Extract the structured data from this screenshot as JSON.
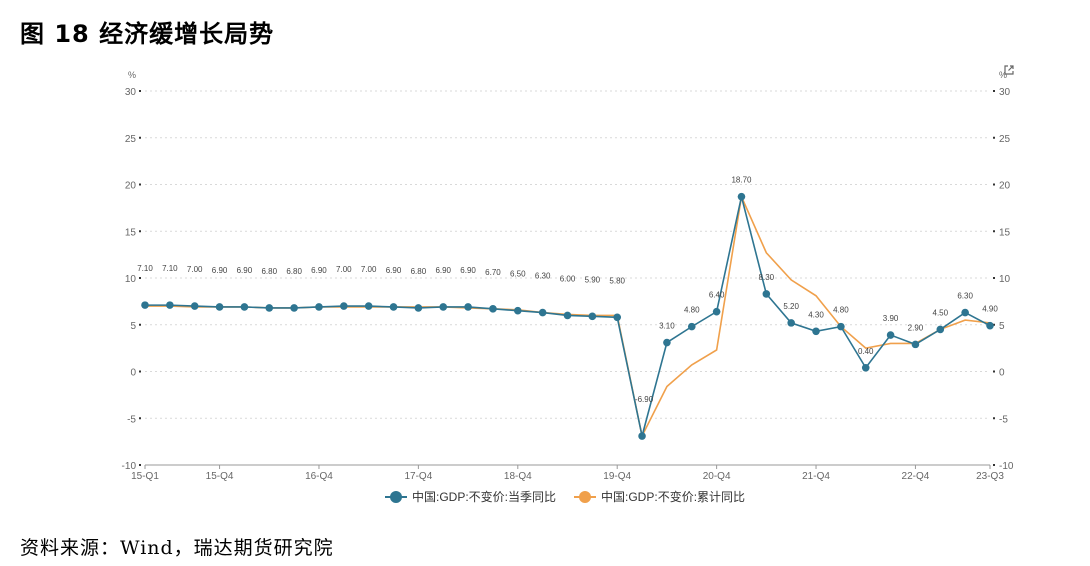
{
  "figure": {
    "title": "图 18 经济缓增长局势",
    "source": "资料来源：Wind，瑞达期货研究院"
  },
  "chart_data": {
    "type": "line",
    "y_unit_left": "%",
    "y_unit_right": "%",
    "ylim": [
      -10,
      30
    ],
    "yticks": [
      -10,
      -5,
      0,
      5,
      10,
      15,
      20,
      25,
      30
    ],
    "grid": true,
    "legend_position": "bottom-center",
    "categories": [
      "15-Q1",
      "15-Q2",
      "15-Q3",
      "15-Q4",
      "16-Q1",
      "16-Q2",
      "16-Q3",
      "16-Q4",
      "17-Q1",
      "17-Q2",
      "17-Q3",
      "17-Q4",
      "18-Q1",
      "18-Q2",
      "18-Q3",
      "18-Q4",
      "19-Q1",
      "19-Q2",
      "19-Q3",
      "19-Q4",
      "20-Q1",
      "20-Q2",
      "20-Q3",
      "20-Q4",
      "21-Q1",
      "21-Q2",
      "21-Q3",
      "21-Q4",
      "22-Q1",
      "22-Q2",
      "22-Q3",
      "22-Q4",
      "23-Q1",
      "23-Q2",
      "23-Q3"
    ],
    "xtick_labels": [
      "15-Q1",
      "15-Q4",
      "16-Q4",
      "17-Q4",
      "18-Q4",
      "19-Q4",
      "20-Q4",
      "21-Q4",
      "22-Q4",
      "23-Q3"
    ],
    "series": [
      {
        "name": "中国:GDP:不变价:当季同比",
        "color": "#2e7591",
        "values": [
          7.1,
          7.1,
          7.0,
          6.9,
          6.9,
          6.8,
          6.8,
          6.9,
          7.0,
          7.0,
          6.9,
          6.8,
          6.9,
          6.9,
          6.7,
          6.5,
          6.3,
          6.0,
          5.9,
          5.8,
          -6.9,
          3.1,
          4.8,
          6.4,
          18.7,
          8.3,
          5.2,
          4.3,
          4.8,
          0.4,
          3.9,
          2.9,
          4.5,
          6.3,
          4.9
        ],
        "data_labels": [
          "7.10",
          "7.10",
          "7.00",
          "6.90",
          "6.90",
          "6.80",
          "6.80",
          "6.90",
          "7.00",
          "7.00",
          "6.90",
          "6.80",
          "6.90",
          "6.90",
          "6.70",
          "6.50",
          "6.30",
          "6.00",
          "5.90",
          "5.80",
          "-6.90",
          "3.10",
          "4.80",
          "6.40",
          "18.70",
          "8.30",
          "5.20",
          "4.30",
          "4.80",
          "0.40",
          "3.90",
          "2.90",
          "4.50",
          "6.30",
          "4.90"
        ]
      },
      {
        "name": "中国:GDP:不变价:累计同比",
        "color": "#f0a04b",
        "values": [
          7.0,
          7.0,
          6.9,
          6.9,
          6.9,
          6.8,
          6.8,
          6.9,
          6.9,
          6.9,
          6.9,
          6.9,
          6.9,
          6.8,
          6.7,
          6.6,
          6.3,
          6.1,
          6.0,
          6.0,
          -6.9,
          -1.6,
          0.7,
          2.3,
          18.7,
          12.7,
          9.8,
          8.1,
          4.8,
          2.5,
          3.0,
          3.0,
          4.5,
          5.5,
          5.2
        ]
      }
    ]
  }
}
